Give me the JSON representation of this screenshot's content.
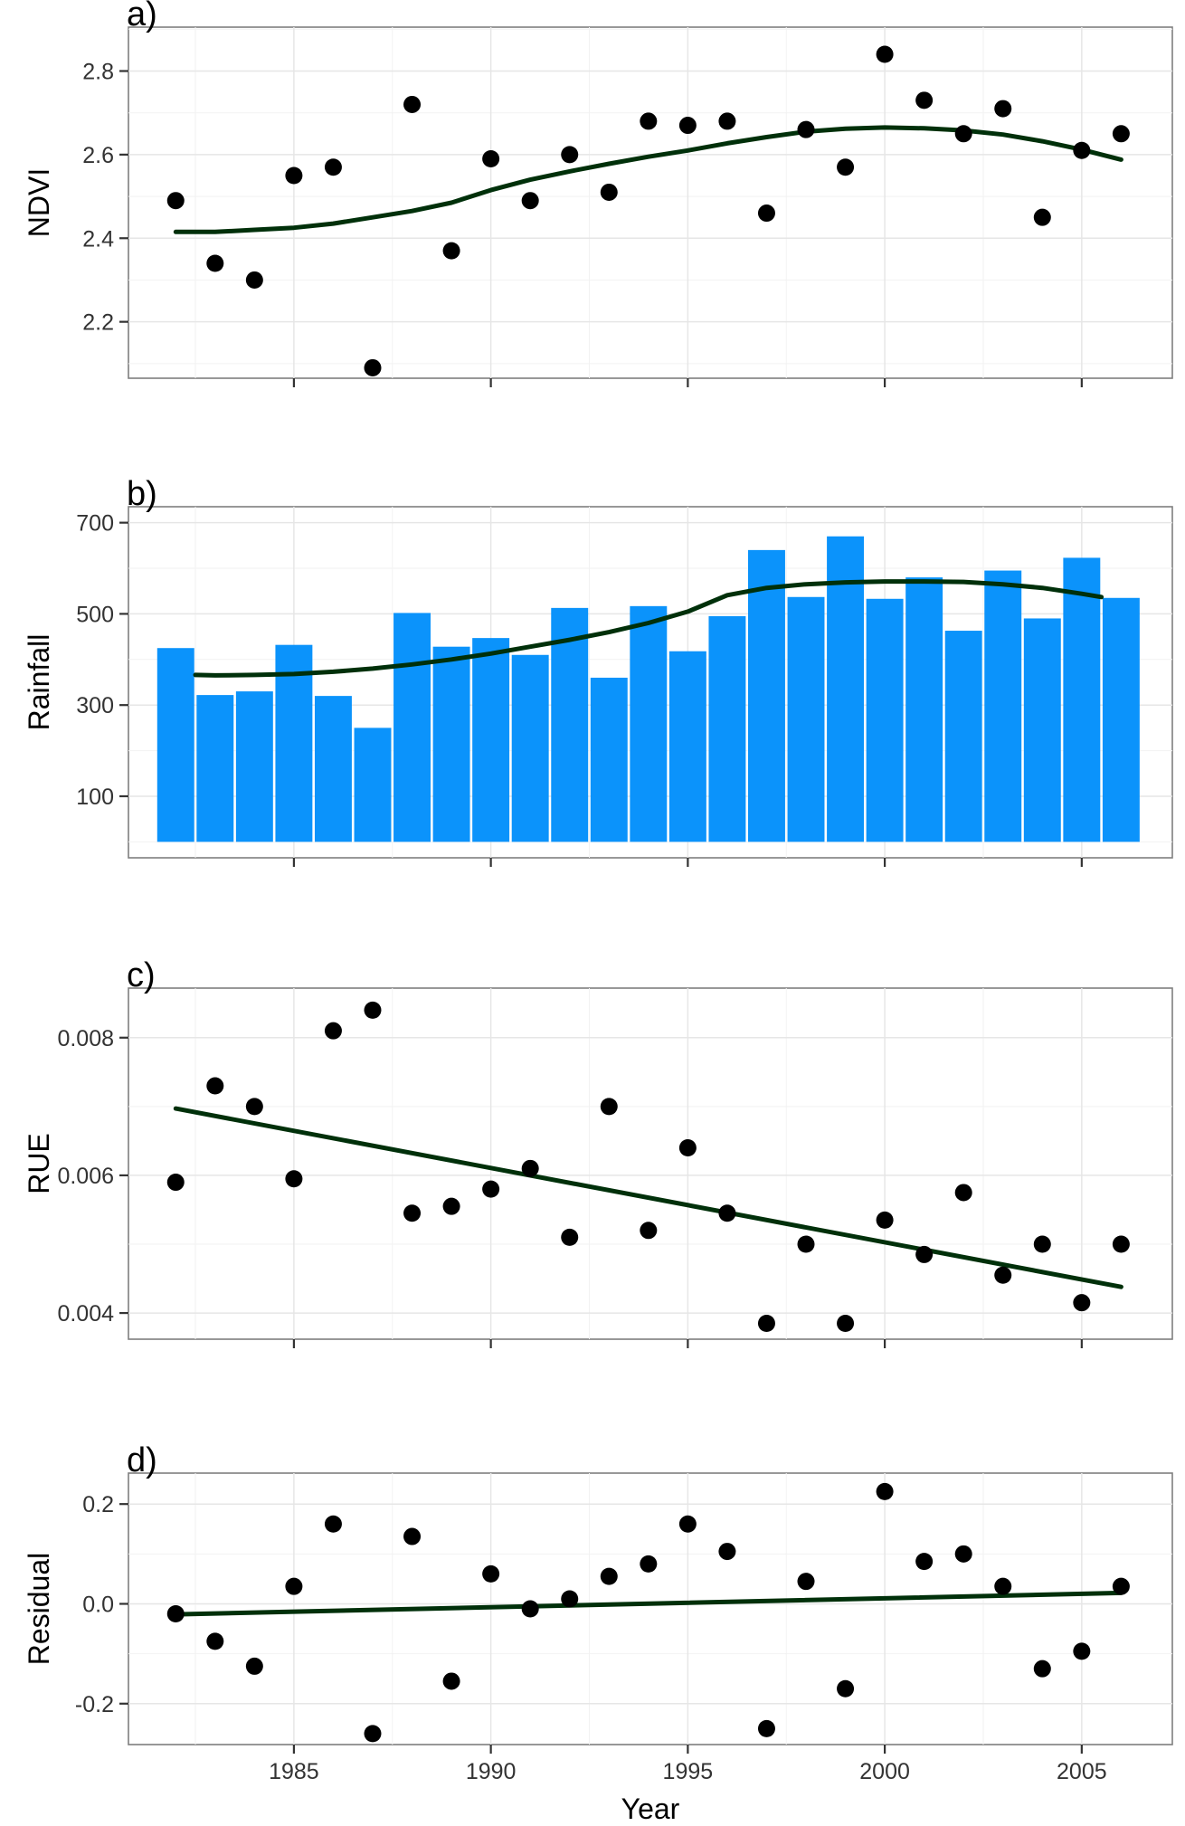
{
  "chart_data": [
    {
      "id": "a",
      "type": "scatter",
      "panel_label": "a)",
      "ylabel": "NDVI",
      "xlabel": "",
      "xlim": [
        1980.8,
        2007.3
      ],
      "ylim": [
        2.065,
        2.905
      ],
      "xticks": [
        1985,
        1990,
        1995,
        2000,
        2005
      ],
      "show_xtick_labels": false,
      "yticks": [
        2.2,
        2.4,
        2.6,
        2.8
      ],
      "ytick_labels": [
        "2.2",
        "2.4",
        "2.6",
        "2.8"
      ],
      "grid": true,
      "point_color": "#000000",
      "line_color": "#00300a",
      "points": {
        "x": [
          1982,
          1983,
          1984,
          1985,
          1986,
          1987,
          1988,
          1989,
          1990,
          1991,
          1992,
          1993,
          1994,
          1995,
          1996,
          1997,
          1998,
          1999,
          2000,
          2001,
          2002,
          2003,
          2004,
          2005,
          2006
        ],
        "y": [
          2.49,
          2.34,
          2.3,
          2.55,
          2.57,
          2.09,
          2.72,
          2.37,
          2.59,
          2.49,
          2.6,
          2.51,
          2.68,
          2.67,
          2.68,
          2.46,
          2.66,
          2.57,
          2.84,
          2.73,
          2.65,
          2.71,
          2.45,
          2.61,
          2.65
        ]
      },
      "trend": {
        "kind": "smooth",
        "x": [
          1982,
          1983,
          1984,
          1985,
          1986,
          1987,
          1988,
          1989,
          1990,
          1991,
          1992,
          1993,
          1994,
          1995,
          1996,
          1997,
          1998,
          1999,
          2000,
          2001,
          2002,
          2003,
          2004,
          2005,
          2006
        ],
        "y": [
          2.415,
          2.415,
          2.42,
          2.425,
          2.435,
          2.45,
          2.465,
          2.485,
          2.515,
          2.54,
          2.56,
          2.578,
          2.595,
          2.61,
          2.627,
          2.642,
          2.655,
          2.662,
          2.665,
          2.663,
          2.658,
          2.648,
          2.632,
          2.612,
          2.588
        ]
      }
    },
    {
      "id": "b",
      "type": "bar",
      "panel_label": "b)",
      "ylabel": "Rainfall",
      "xlabel": "",
      "xlim": [
        1980.8,
        2007.3
      ],
      "ylim": [
        -35,
        735
      ],
      "xticks": [
        1985,
        1990,
        1995,
        2000,
        2005
      ],
      "show_xtick_labels": false,
      "yticks": [
        100,
        300,
        500,
        700
      ],
      "ytick_labels": [
        "100",
        "300",
        "500",
        "700"
      ],
      "grid": true,
      "bar_color": "#0b93fb",
      "line_color": "#00300a",
      "categories": [
        1982,
        1983,
        1984,
        1985,
        1986,
        1987,
        1988,
        1989,
        1990,
        1991,
        1992,
        1993,
        1994,
        1995,
        1996,
        1997,
        1998,
        1999,
        2000,
        2001,
        2002,
        2003,
        2004,
        2005,
        2006
      ],
      "values": [
        425,
        322,
        330,
        432,
        320,
        250,
        502,
        428,
        447,
        410,
        513,
        360,
        517,
        418,
        495,
        640,
        537,
        670,
        533,
        580,
        463,
        595,
        490,
        623,
        535
      ],
      "trend": {
        "kind": "smooth",
        "x": [
          1982.5,
          1983,
          1984,
          1985,
          1986,
          1987,
          1988,
          1989,
          1990,
          1991,
          1992,
          1993,
          1994,
          1995,
          1996,
          1997,
          1998,
          1999,
          2000,
          2001,
          2002,
          2003,
          2004,
          2005,
          2005.5
        ],
        "y": [
          366,
          365,
          366,
          368,
          373,
          380,
          389,
          400,
          413,
          428,
          443,
          460,
          480,
          505,
          541,
          557,
          565,
          569,
          571,
          571,
          570,
          565,
          557,
          544,
          537
        ]
      }
    },
    {
      "id": "c",
      "type": "scatter",
      "panel_label": "c)",
      "ylabel": "RUE",
      "xlabel": "",
      "xlim": [
        1980.8,
        2007.3
      ],
      "ylim": [
        0.00362,
        0.00872
      ],
      "xticks": [
        1985,
        1990,
        1995,
        2000,
        2005
      ],
      "show_xtick_labels": false,
      "yticks": [
        0.004,
        0.006,
        0.008
      ],
      "ytick_labels": [
        "0.004",
        "0.006",
        "0.008"
      ],
      "grid": true,
      "point_color": "#000000",
      "line_color": "#00300a",
      "points": {
        "x": [
          1982,
          1983,
          1984,
          1985,
          1986,
          1987,
          1988,
          1989,
          1990,
          1991,
          1992,
          1993,
          1994,
          1995,
          1996,
          1997,
          1998,
          1999,
          2000,
          2001,
          2002,
          2003,
          2004,
          2005,
          2006
        ],
        "y": [
          0.0059,
          0.0073,
          0.007,
          0.00595,
          0.0081,
          0.0084,
          0.00545,
          0.00555,
          0.0058,
          0.0061,
          0.0051,
          0.007,
          0.0052,
          0.0064,
          0.00545,
          0.00385,
          0.005,
          0.00385,
          0.00535,
          0.00485,
          0.00575,
          0.00455,
          0.005,
          0.00415,
          0.005
        ]
      },
      "trend": {
        "kind": "linear",
        "x": [
          1982,
          2006
        ],
        "y": [
          0.00697,
          0.00438
        ]
      }
    },
    {
      "id": "d",
      "type": "scatter",
      "panel_label": "d)",
      "ylabel": "Residual",
      "xlabel": "Year",
      "xlim": [
        1980.8,
        2007.3
      ],
      "ylim": [
        -0.282,
        0.262
      ],
      "xticks": [
        1985,
        1990,
        1995,
        2000,
        2005
      ],
      "show_xtick_labels": true,
      "xtick_labels": [
        "1985",
        "1990",
        "1995",
        "2000",
        "2005"
      ],
      "yticks": [
        -0.2,
        0.0,
        0.2
      ],
      "ytick_labels": [
        "-0.2",
        "0.0",
        "0.2"
      ],
      "grid": true,
      "point_color": "#000000",
      "line_color": "#00300a",
      "points": {
        "x": [
          1982,
          1983,
          1984,
          1985,
          1986,
          1987,
          1988,
          1989,
          1990,
          1991,
          1992,
          1993,
          1994,
          1995,
          1996,
          1997,
          1998,
          1999,
          2000,
          2001,
          2002,
          2003,
          2004,
          2005,
          2006
        ],
        "y": [
          -0.02,
          -0.075,
          -0.125,
          0.035,
          0.16,
          -0.26,
          0.135,
          -0.155,
          0.06,
          -0.01,
          0.01,
          0.055,
          0.08,
          0.16,
          0.105,
          -0.25,
          0.045,
          -0.17,
          0.225,
          0.085,
          0.1,
          0.035,
          -0.13,
          -0.095,
          0.035
        ]
      },
      "trend": {
        "kind": "linear",
        "x": [
          1982,
          2006
        ],
        "y": [
          -0.021,
          0.022
        ]
      }
    }
  ]
}
